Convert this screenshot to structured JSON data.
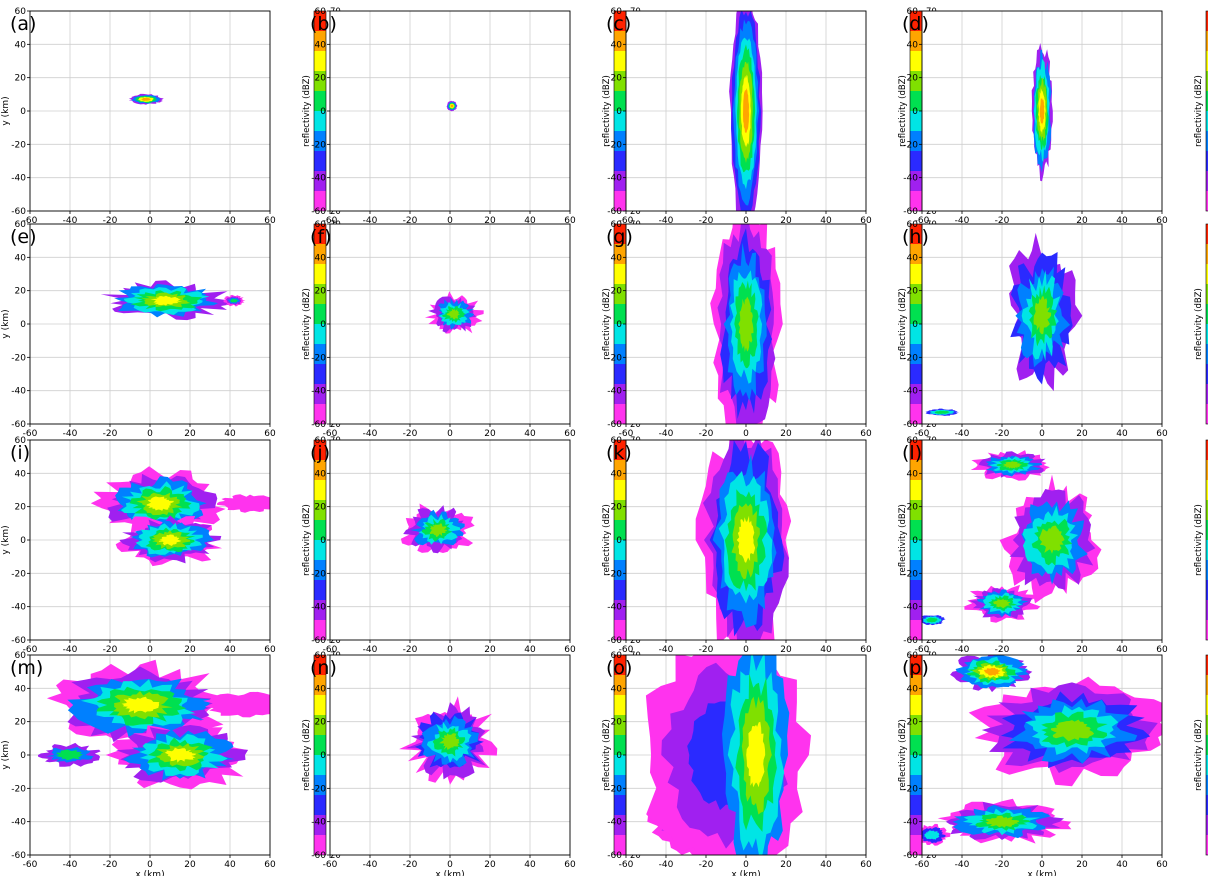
{
  "chart_data": {
    "type": "heatmap",
    "layout": "4x4 grid of radar reflectivity maps",
    "panel_labels": [
      "(a)",
      "(b)",
      "(c)",
      "(d)",
      "(e)",
      "(f)",
      "(g)",
      "(h)",
      "(i)",
      "(j)",
      "(k)",
      "(l)",
      "(m)",
      "(n)",
      "(o)",
      "(p)"
    ],
    "xlabel": "x (km)",
    "ylabel": "y (km)",
    "colorbar_label": "reflectivity (dBZ)",
    "xlim": [
      -60,
      60
    ],
    "ylim": [
      -60,
      60
    ],
    "x_ticks": [
      "-60",
      "-40",
      "-20",
      "0",
      "20",
      "40",
      "60"
    ],
    "y_ticks": [
      "60",
      "40",
      "20",
      "0",
      "-20",
      "-40",
      "-60"
    ],
    "colorbar_ticks": [
      "70",
      "60",
      "50",
      "40",
      "30",
      "20"
    ],
    "color_levels": {
      "bounds": [
        20,
        25,
        30,
        35,
        40,
        45,
        50,
        55,
        60,
        65,
        70
      ],
      "colors": [
        "#ff33ee",
        "#a020f0",
        "#2a2aff",
        "#0080ff",
        "#00e5e5",
        "#00e050",
        "#80e000",
        "#ffff00",
        "#ffa500",
        "#ff2200"
      ]
    },
    "grid": true,
    "xlabel_shown_on_bottom_row": true,
    "ylabel_shown_on_left_column": true
  }
}
